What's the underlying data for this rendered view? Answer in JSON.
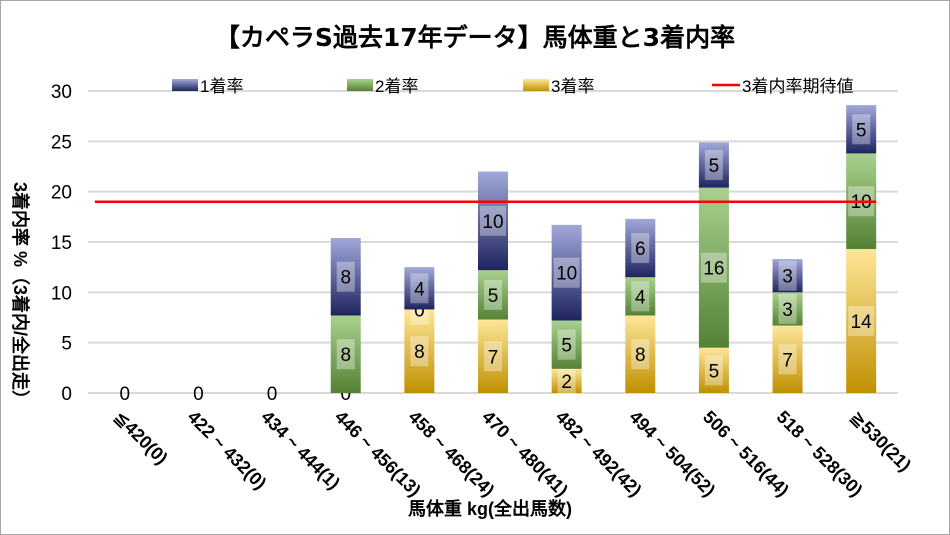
{
  "chart_data": {
    "type": "bar",
    "stacked": true,
    "title": "【カペラS過去17年データ】馬体重と3着内率",
    "xlabel": "馬体重 kg(全出馬数)",
    "ylabel": "3着内率 %（3着内/全出走）",
    "ylim": [
      0,
      30
    ],
    "yticks": [
      0,
      5,
      10,
      15,
      20,
      25,
      30
    ],
    "grid": true,
    "legend_position": "top",
    "categories": [
      "≦420(0)",
      "422 ~ 432(0)",
      "434 ~ 444(1)",
      "446 ~ 456(13)",
      "458 ~ 468(24)",
      "470 ~ 480(41)",
      "482 ~ 492(42)",
      "494 ~ 504(52)",
      "506 ~ 516(44)",
      "518 ~ 528(30)",
      "≧530(21)"
    ],
    "series": [
      {
        "name": "3着率",
        "color_light": "#ffe699",
        "color_dark": "#bf9000",
        "values": [
          0,
          0,
          0,
          0,
          8.3,
          7.3,
          2.4,
          7.7,
          4.5,
          6.7,
          14.3
        ],
        "labels": [
          "0",
          "0",
          "0",
          "0",
          "8",
          "7",
          "2",
          "8",
          "5",
          "7",
          "14"
        ]
      },
      {
        "name": "2着率",
        "color_light": "#a9d18e",
        "color_dark": "#548235",
        "values": [
          0,
          0,
          0,
          7.7,
          0,
          4.9,
          4.8,
          3.8,
          15.9,
          3.3,
          9.5
        ],
        "labels": [
          "",
          "",
          "",
          "8",
          "0",
          "5",
          "5",
          "4",
          "16",
          "3",
          "10"
        ]
      },
      {
        "name": "1着率",
        "color_light": "#a1a8d9",
        "color_dark": "#1f2460",
        "values": [
          0,
          0,
          0,
          7.7,
          4.2,
          9.8,
          9.5,
          5.8,
          4.5,
          3.3,
          4.8
        ],
        "labels": [
          "",
          "",
          "",
          "8",
          "4",
          "10",
          "10",
          "6",
          "5",
          "3",
          "5"
        ]
      }
    ],
    "reference_line": {
      "name": "3着内率期待値",
      "value": 19,
      "color": "#ff0000"
    }
  }
}
